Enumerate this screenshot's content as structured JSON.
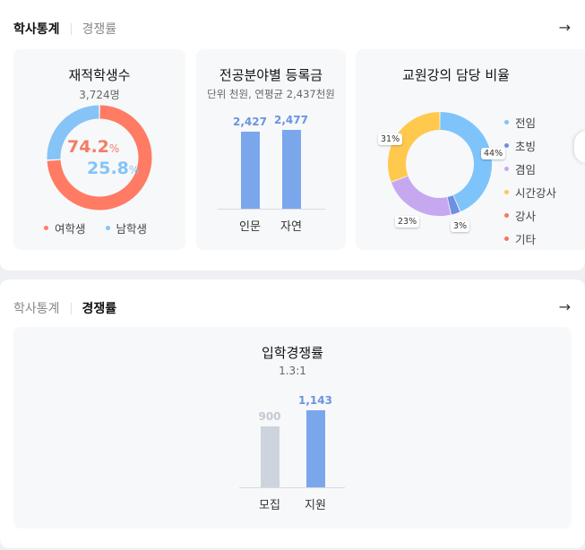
{
  "panel1": {
    "tabs": [
      {
        "label": "학사통계"
      },
      {
        "label": "경쟁률"
      }
    ],
    "arrow": "→",
    "students": {
      "title": "재적학생수",
      "subtitle": "3,724명",
      "female_pct": "74.2",
      "male_pct": "25.8",
      "pct_unit": "%",
      "legend": [
        {
          "label": "여학생",
          "color": "#ff7b63"
        },
        {
          "label": "남학생",
          "color": "#86c3f7"
        }
      ]
    },
    "tuition": {
      "title": "전공분야별 등록금",
      "subtitle": "단위 천원, 연평균 2,437천원"
    },
    "faculty": {
      "title": "교원강의 담당 비율",
      "tags": {
        "t44": "44%",
        "t3": "3%",
        "t23": "23%",
        "t31": "31%"
      },
      "legend": [
        {
          "label": "전임",
          "color": "#7ec4fa"
        },
        {
          "label": "초빙",
          "color": "#6f8fdf"
        },
        {
          "label": "겸임",
          "color": "#c6a8f0"
        },
        {
          "label": "시간강사",
          "color": "#ffc94d"
        },
        {
          "label": "강사",
          "color": "#f37a5b"
        },
        {
          "label": "기타",
          "color": "#ff7063"
        }
      ]
    }
  },
  "panel2": {
    "tabs": [
      {
        "label": "학사통계"
      },
      {
        "label": "경쟁률"
      }
    ],
    "arrow": "→",
    "competition": {
      "title": "입학경쟁률",
      "subtitle": "1.3:1"
    }
  },
  "chart_data": [
    {
      "type": "pie",
      "title": "재적학생수",
      "categories": [
        "여학생",
        "남학생"
      ],
      "values": [
        74.2,
        25.8
      ],
      "colors": [
        "#ff7b63",
        "#86c3f7"
      ]
    },
    {
      "type": "bar",
      "title": "전공분야별 등록금",
      "categories": [
        "인문",
        "자연"
      ],
      "values": [
        2427,
        2477
      ],
      "value_labels": [
        "2,427",
        "2,477"
      ],
      "colors": [
        "#7aa7ec",
        "#7aa7ec"
      ],
      "label_color": "#6a95de",
      "ylim": [
        0,
        2900
      ]
    },
    {
      "type": "pie",
      "title": "교원강의 담당 비율",
      "categories": [
        "전임",
        "초빙",
        "겸임",
        "시간강사",
        "강사",
        "기타"
      ],
      "values": [
        44,
        3,
        23,
        31,
        0,
        0
      ],
      "colors": [
        "#7ec4fa",
        "#6f8fdf",
        "#c6a8f0",
        "#ffc94d",
        "#f37a5b",
        "#ff7063"
      ]
    },
    {
      "type": "bar",
      "title": "입학경쟁률",
      "categories": [
        "모집",
        "지원"
      ],
      "values": [
        900,
        1143
      ],
      "value_labels": [
        "900",
        "1,143"
      ],
      "colors": [
        "#ced4de",
        "#7aa7ec"
      ],
      "label_colors": [
        "#c4c9d2",
        "#6a95de"
      ],
      "ylim": [
        0,
        1300
      ]
    }
  ]
}
